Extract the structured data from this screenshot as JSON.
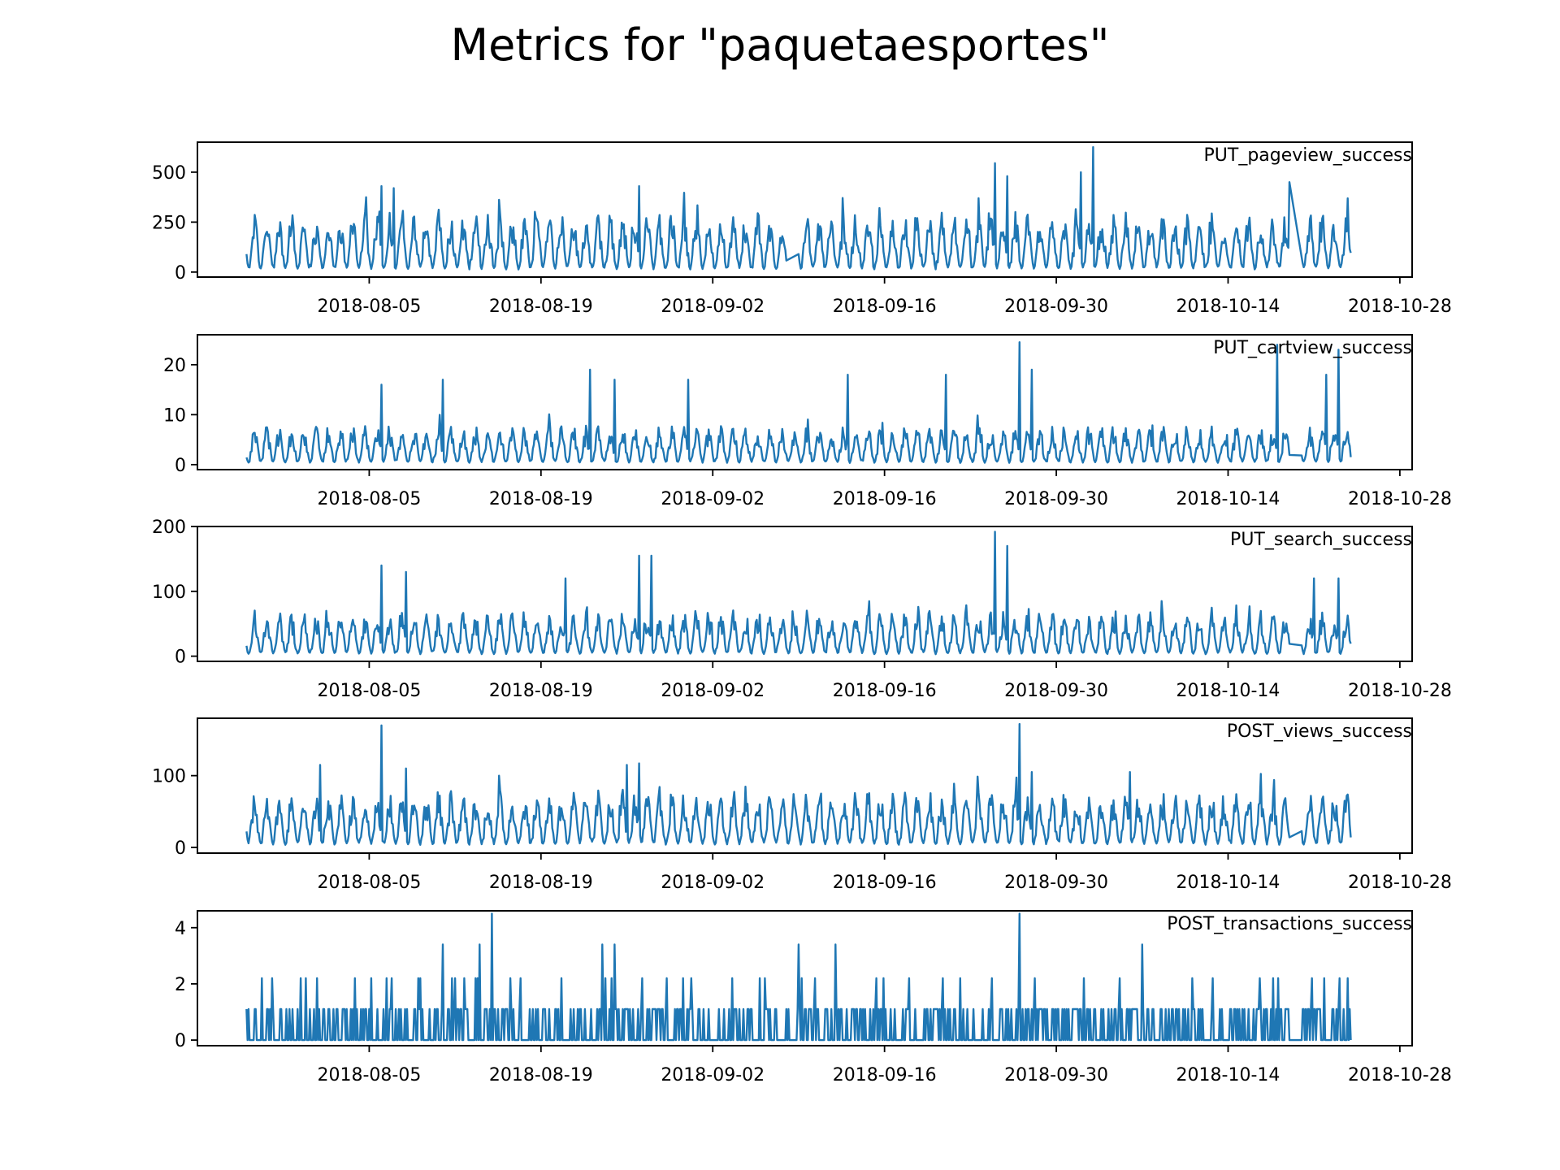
{
  "figure": {
    "title": "Metrics for \"paquetaesportes\""
  },
  "style": {
    "line_color": "#1f77b4",
    "axis_color": "#000000",
    "background": "#ffffff"
  },
  "chart_data": [
    {
      "type": "line",
      "title": "PUT_pageview_success",
      "xlim": [
        "2018-07-22",
        "2018-10-29"
      ],
      "ylim": [
        -25,
        650
      ],
      "yticks": [
        0,
        250,
        500
      ],
      "xticks": [
        "2018-08-05",
        "2018-08-19",
        "2018-09-02",
        "2018-09-16",
        "2018-09-30",
        "2018-10-14",
        "2018-10-28"
      ],
      "grid": false,
      "series": [
        {
          "x_start": "2018-07-26",
          "x_end": "2018-10-24",
          "typical_min": 0,
          "typical_max": 300,
          "peaks": [
            {
              "x": "2018-08-06",
              "y": 430
            },
            {
              "x": "2018-08-07",
              "y": 420
            },
            {
              "x": "2018-08-27",
              "y": 430
            },
            {
              "x": "2018-09-25",
              "y": 545
            },
            {
              "x": "2018-09-26",
              "y": 480
            },
            {
              "x": "2018-10-02",
              "y": 500
            },
            {
              "x": "2018-10-03",
              "y": 625
            },
            {
              "x": "2018-10-19",
              "y": 450
            }
          ],
          "gaps": [
            {
              "from": "2018-09-08",
              "to": "2018-09-09"
            },
            {
              "from": "2018-10-19",
              "to": "2018-10-20"
            }
          ]
        }
      ]
    },
    {
      "type": "line",
      "title": "PUT_cartview_success",
      "xlim": [
        "2018-07-22",
        "2018-10-29"
      ],
      "ylim": [
        -1,
        26
      ],
      "yticks": [
        0,
        10,
        20
      ],
      "xticks": [
        "2018-08-05",
        "2018-08-19",
        "2018-09-02",
        "2018-09-16",
        "2018-09-30",
        "2018-10-14",
        "2018-10-28"
      ],
      "grid": false,
      "series": [
        {
          "x_start": "2018-07-26",
          "x_end": "2018-10-24",
          "typical_min": 0,
          "typical_max": 8,
          "peaks": [
            {
              "x": "2018-08-06",
              "y": 16
            },
            {
              "x": "2018-08-11",
              "y": 17
            },
            {
              "x": "2018-08-23",
              "y": 19
            },
            {
              "x": "2018-08-25",
              "y": 17
            },
            {
              "x": "2018-08-31",
              "y": 17
            },
            {
              "x": "2018-09-13",
              "y": 18
            },
            {
              "x": "2018-09-21",
              "y": 18
            },
            {
              "x": "2018-09-27",
              "y": 24.5
            },
            {
              "x": "2018-09-28",
              "y": 19
            },
            {
              "x": "2018-10-18",
              "y": 24
            },
            {
              "x": "2018-10-22",
              "y": 18
            },
            {
              "x": "2018-10-23",
              "y": 23
            }
          ],
          "gaps": [
            {
              "from": "2018-10-19",
              "to": "2018-10-20"
            }
          ]
        }
      ]
    },
    {
      "type": "line",
      "title": "PUT_search_success",
      "xlim": [
        "2018-07-22",
        "2018-10-29"
      ],
      "ylim": [
        -8,
        200
      ],
      "yticks": [
        0,
        100,
        200
      ],
      "xticks": [
        "2018-08-05",
        "2018-08-19",
        "2018-09-02",
        "2018-09-16",
        "2018-09-30",
        "2018-10-14",
        "2018-10-28"
      ],
      "grid": false,
      "series": [
        {
          "x_start": "2018-07-26",
          "x_end": "2018-10-24",
          "typical_min": 0,
          "typical_max": 70,
          "peaks": [
            {
              "x": "2018-08-06",
              "y": 140
            },
            {
              "x": "2018-08-08",
              "y": 130
            },
            {
              "x": "2018-08-21",
              "y": 120
            },
            {
              "x": "2018-08-27",
              "y": 155
            },
            {
              "x": "2018-08-28",
              "y": 155
            },
            {
              "x": "2018-09-25",
              "y": 192
            },
            {
              "x": "2018-09-26",
              "y": 170
            },
            {
              "x": "2018-10-21",
              "y": 120
            },
            {
              "x": "2018-10-23",
              "y": 120
            }
          ],
          "gaps": [
            {
              "from": "2018-10-19",
              "to": "2018-10-20"
            }
          ]
        }
      ]
    },
    {
      "type": "line",
      "title": "POST_views_success",
      "xlim": [
        "2018-07-22",
        "2018-10-29"
      ],
      "ylim": [
        -8,
        180
      ],
      "yticks": [
        0,
        100
      ],
      "xticks": [
        "2018-08-05",
        "2018-08-19",
        "2018-09-02",
        "2018-09-16",
        "2018-09-30",
        "2018-10-14",
        "2018-10-28"
      ],
      "grid": false,
      "series": [
        {
          "x_start": "2018-07-26",
          "x_end": "2018-10-24",
          "typical_min": 0,
          "typical_max": 80,
          "peaks": [
            {
              "x": "2018-08-01",
              "y": 115
            },
            {
              "x": "2018-08-06",
              "y": 170
            },
            {
              "x": "2018-08-08",
              "y": 110
            },
            {
              "x": "2018-08-26",
              "y": 115
            },
            {
              "x": "2018-08-27",
              "y": 117
            },
            {
              "x": "2018-09-27",
              "y": 172
            },
            {
              "x": "2018-09-28",
              "y": 105
            },
            {
              "x": "2018-10-06",
              "y": 105
            }
          ],
          "gaps": [
            {
              "from": "2018-10-19",
              "to": "2018-10-20"
            }
          ]
        }
      ]
    },
    {
      "type": "line",
      "title": "POST_transactions_success",
      "xlim": [
        "2018-07-22",
        "2018-10-29"
      ],
      "ylim": [
        -0.2,
        4.6
      ],
      "yticks": [
        0,
        2,
        4
      ],
      "xticks": [
        "2018-08-05",
        "2018-08-19",
        "2018-09-02",
        "2018-09-16",
        "2018-09-30",
        "2018-10-14",
        "2018-10-28"
      ],
      "grid": false,
      "series": [
        {
          "x_start": "2018-07-26",
          "x_end": "2018-10-24",
          "typical_min": 0,
          "typical_max": 1,
          "peaks": [
            {
              "x": "2018-08-11",
              "y": 3.4
            },
            {
              "x": "2018-08-14",
              "y": 3.4
            },
            {
              "x": "2018-08-15",
              "y": 4.5
            },
            {
              "x": "2018-08-24",
              "y": 3.4
            },
            {
              "x": "2018-08-25",
              "y": 3.4
            },
            {
              "x": "2018-09-09",
              "y": 3.4
            },
            {
              "x": "2018-09-12",
              "y": 3.4
            },
            {
              "x": "2018-09-27",
              "y": 4.5
            },
            {
              "x": "2018-10-07",
              "y": 3.4
            }
          ],
          "gaps": [
            {
              "from": "2018-10-19",
              "to": "2018-10-20"
            }
          ]
        }
      ]
    }
  ]
}
